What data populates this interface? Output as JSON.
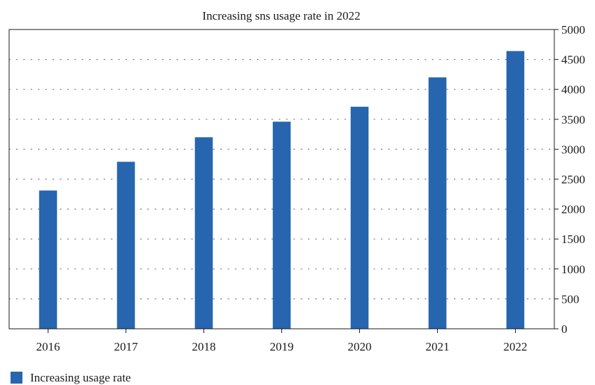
{
  "chart_data": {
    "type": "bar",
    "title": "Increasing sns usage rate in 2022",
    "xlabel": "",
    "ylabel": "",
    "categories": [
      "2016",
      "2017",
      "2018",
      "2019",
      "2020",
      "2021",
      "2022"
    ],
    "series": [
      {
        "name": "Increasing usage rate",
        "values": [
          2310,
          2790,
          3200,
          3460,
          3710,
          4200,
          4640
        ],
        "color": "#2766ae"
      }
    ],
    "ylim": [
      0,
      5000
    ],
    "y_ticks": [
      "0",
      "500",
      "1000",
      "1500",
      "2000",
      "2500",
      "3000",
      "3500",
      "4000",
      "4500",
      "5000"
    ],
    "y_axis_side": "right",
    "grid": "horizontal dotted",
    "legend_position": "bottom-left"
  }
}
